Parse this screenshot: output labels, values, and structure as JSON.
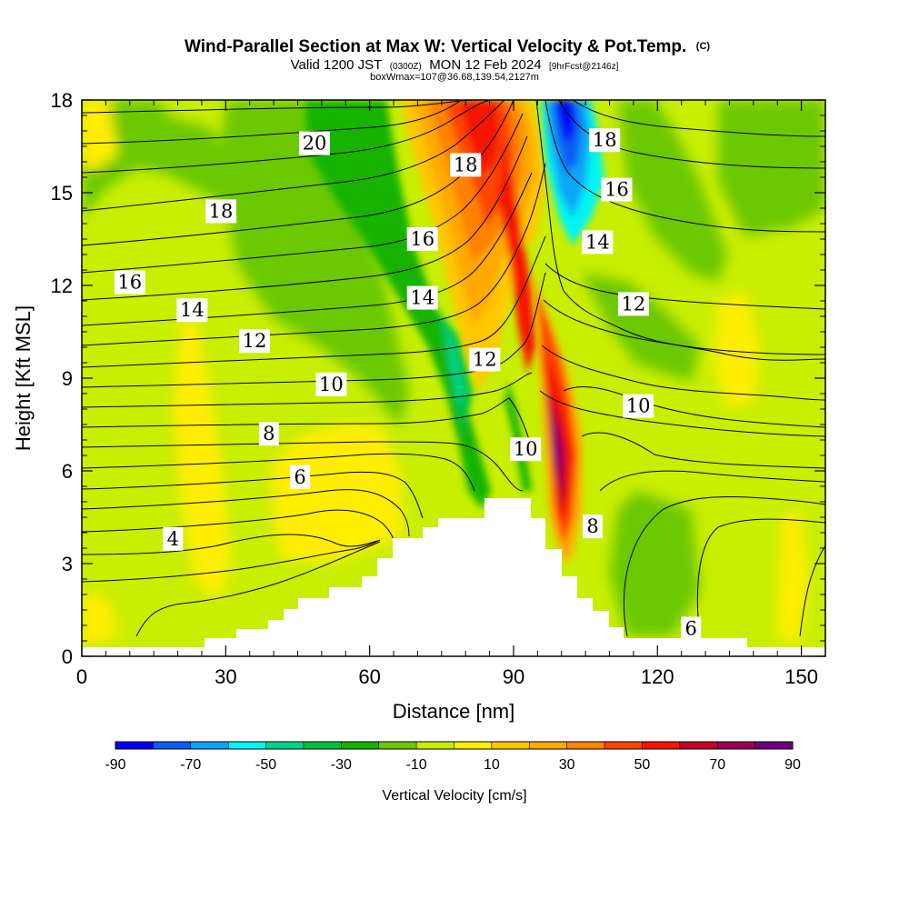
{
  "chart_data": {
    "type": "heatmap",
    "title": "Wind-Parallel Section at Max W: Vertical Velocity & Pot.Temp.",
    "title_suffix": "(C)",
    "subtitle_valid": "Valid 1200 JST",
    "subtitle_utc": "(0300Z)",
    "subtitle_date": "MON 12 Feb 2024",
    "subtitle_fcst": "[9hrFcst@2146z]",
    "subtitle2": "boxWmax=107@36.68,139.54,2127m",
    "xlabel": "Distance [nm]",
    "ylabel": "Height [Kft MSL]",
    "xlim": [
      0,
      155
    ],
    "ylim": [
      0,
      18
    ],
    "xticks": [
      0,
      30,
      60,
      90,
      120,
      150
    ],
    "xtick_labels": [
      "0",
      "30",
      "60",
      "90",
      "120",
      "150"
    ],
    "yticks": [
      0,
      3,
      6,
      9,
      12,
      15,
      18
    ],
    "ytick_labels": [
      "0",
      "3",
      "6",
      "9",
      "12",
      "15",
      "18"
    ],
    "colorbar": {
      "title": "Vertical Velocity [cm/s]",
      "levels": [
        -90,
        -80,
        -70,
        -60,
        -50,
        -40,
        -30,
        -20,
        -10,
        0,
        10,
        20,
        30,
        40,
        50,
        60,
        70,
        80,
        90
      ],
      "colors": [
        "#0000f5",
        "#0a5cf5",
        "#0aa5f5",
        "#00f5f5",
        "#00d58a",
        "#00c040",
        "#12b400",
        "#6cc800",
        "#c8ee00",
        "#ffee00",
        "#ffc800",
        "#ffaa00",
        "#ff8200",
        "#ff4400",
        "#f51400",
        "#c8002c",
        "#a00050",
        "#6e0080"
      ],
      "tick_labels": [
        "-90",
        "-70",
        "-50",
        "-30",
        "-10",
        "10",
        "30",
        "50",
        "70",
        "90"
      ]
    },
    "contour_labels": [
      {
        "text": "20",
        "x": 48.5,
        "y": 16.6
      },
      {
        "text": "18",
        "x": 29,
        "y": 14.4
      },
      {
        "text": "16",
        "x": 10,
        "y": 12.1
      },
      {
        "text": "14",
        "x": 23,
        "y": 11.2
      },
      {
        "text": "12",
        "x": 36,
        "y": 10.2
      },
      {
        "text": "10",
        "x": 52,
        "y": 8.8
      },
      {
        "text": "8",
        "x": 39,
        "y": 7.2
      },
      {
        "text": "6",
        "x": 45.5,
        "y": 5.8
      },
      {
        "text": "4",
        "x": 19,
        "y": 3.8
      },
      {
        "text": "18",
        "x": 80,
        "y": 15.9
      },
      {
        "text": "16",
        "x": 71,
        "y": 13.5
      },
      {
        "text": "14",
        "x": 71,
        "y": 11.6
      },
      {
        "text": "12",
        "x": 84,
        "y": 9.6
      },
      {
        "text": "10",
        "x": 92.5,
        "y": 6.7
      },
      {
        "text": "18",
        "x": 109,
        "y": 16.7
      },
      {
        "text": "16",
        "x": 111.5,
        "y": 15.1
      },
      {
        "text": "14",
        "x": 107.5,
        "y": 13.4
      },
      {
        "text": "12",
        "x": 115,
        "y": 11.4
      },
      {
        "text": "10",
        "x": 116,
        "y": 8.1
      },
      {
        "text": "8",
        "x": 106.5,
        "y": 4.2
      },
      {
        "text": "6",
        "x": 127,
        "y": 0.9
      }
    ]
  }
}
